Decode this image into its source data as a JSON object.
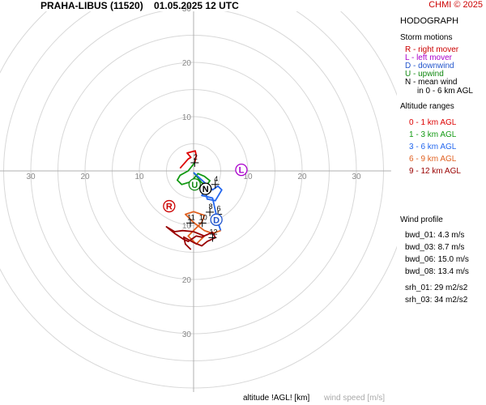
{
  "header": {
    "title": "PRAHA-LIBUS (11520)    01.05.2025 12 UTC",
    "copyright": "CHMI © 2025"
  },
  "panel": {
    "title": "HODOGRAPH",
    "storm_title": "Storm motions",
    "storm_items": [
      {
        "text": "R - right mover",
        "color": "#cc0000"
      },
      {
        "text": "L - left mover",
        "color": "#aa00cc"
      },
      {
        "text": "D - downwind",
        "color": "#2255cc"
      },
      {
        "text": "U - upwind",
        "color": "#118811"
      },
      {
        "text": "N - mean wind",
        "color": "#000000"
      },
      {
        "text": "in 0 - 6 km AGL",
        "color": "#000000"
      }
    ],
    "alt_title": "Altitude ranges",
    "alt_items": [
      {
        "text": "0 - 1 km AGL",
        "color": "#dd0000"
      },
      {
        "text": "1 - 3 km AGL",
        "color": "#119911"
      },
      {
        "text": "3 - 6 km AGL",
        "color": "#2266ee"
      },
      {
        "text": "6 - 9 km AGL",
        "color": "#e06020"
      },
      {
        "text": "9 - 12 km AGL",
        "color": "#990000"
      }
    ],
    "wind_title": "Wind profile",
    "wind_items": [
      "bwd_01: 4.3 m/s",
      "bwd_03: 8.7 m/s",
      "bwd_06: 15.0 m/s",
      "bwd_08: 13.4 m/s"
    ],
    "srh_items": [
      "srh_01: 29 m2/s2",
      "srh_03: 34 m2/s2"
    ]
  },
  "footer": {
    "altitude_label": "altitude !AGL! [km]",
    "speed_label": "wind speed [m/s]"
  },
  "chart_data": {
    "type": "hodograph",
    "units": "m/s",
    "ring_step": 5,
    "max_ring": 40,
    "axis_labels": [
      10,
      20,
      30
    ],
    "segments": [
      {
        "range": "0 - 1 km AGL",
        "color": "#dd0000",
        "points": [
          [
            -2.5,
            0.5
          ],
          [
            -1,
            2.2
          ],
          [
            -0.5,
            2.5
          ],
          [
            -1.2,
            3.3
          ],
          [
            0.3,
            3.7
          ],
          [
            0.5,
            2.8
          ],
          [
            0.2,
            1.5
          ]
        ]
      },
      {
        "range": "1 - 3 km AGL",
        "color": "#119911",
        "points": [
          [
            0.2,
            1.5
          ],
          [
            -1,
            0
          ],
          [
            -2.5,
            -0.8
          ],
          [
            -3,
            -1.7
          ],
          [
            -2.2,
            -2.5
          ],
          [
            -0.5,
            -2
          ],
          [
            0.8,
            -0.5
          ],
          [
            2,
            -1
          ],
          [
            3,
            -1.8
          ],
          [
            2.5,
            -2.5
          ],
          [
            1.5,
            -2.2
          ],
          [
            0,
            -0.3
          ]
        ]
      },
      {
        "range": "3 - 6 km AGL",
        "color": "#2266ee",
        "points": [
          [
            0,
            -0.3
          ],
          [
            3.5,
            -3.5
          ],
          [
            4.5,
            -2.8
          ],
          [
            5.2,
            -3.5
          ],
          [
            4,
            -5.5
          ],
          [
            2.5,
            -5.2
          ],
          [
            2.2,
            -3.7
          ],
          [
            1.5,
            -4.5
          ],
          [
            3.5,
            -5
          ],
          [
            4.5,
            -9.5
          ],
          [
            5,
            -11
          ]
        ]
      },
      {
        "range": "6 - 9 km AGL",
        "color": "#e06020",
        "points": [
          [
            5,
            -11
          ],
          [
            3.5,
            -11.5
          ],
          [
            2,
            -11
          ],
          [
            0,
            -9.5
          ],
          [
            -1.5,
            -8
          ],
          [
            0,
            -7.5
          ],
          [
            2,
            -8.2
          ],
          [
            1.5,
            -9.5
          ],
          [
            -1,
            -12
          ],
          [
            0.5,
            -13.5
          ],
          [
            2,
            -12
          ]
        ]
      },
      {
        "range": "9 - 12 km AGL",
        "color": "#990000",
        "points": [
          [
            2,
            -12
          ],
          [
            0,
            -11.2
          ],
          [
            -2,
            -11
          ],
          [
            -3.5,
            -11.2
          ],
          [
            -5,
            -10.3
          ],
          [
            -3.5,
            -11.5
          ],
          [
            -2,
            -12.5
          ],
          [
            -1,
            -13
          ],
          [
            0.5,
            -12
          ],
          [
            1.5,
            -12.2
          ],
          [
            3.5,
            -11.3
          ],
          [
            4,
            -12.3
          ],
          [
            2.5,
            -13
          ],
          [
            1.5,
            -13.8
          ],
          [
            0,
            -13.2
          ],
          [
            -1.8,
            -12.2
          ],
          [
            -1.5,
            -13.5
          ],
          [
            -0.5,
            -14.5
          ]
        ]
      }
    ],
    "altitude_marks": [
      {
        "text": "2",
        "u": 0.2,
        "v": 1.5
      },
      {
        "text": "4",
        "u": 4,
        "v": -2.5
      },
      {
        "text": "6",
        "u": 4.5,
        "v": -8
      },
      {
        "text": "8",
        "u": 3,
        "v": -7.6
      },
      {
        "text": "10",
        "u": 1.6,
        "v": -9.6
      },
      {
        "text": "11",
        "u": -0.6,
        "v": -9.6
      },
      {
        "text": "12",
        "u": 3.5,
        "v": -12.3
      }
    ],
    "storm_motions": [
      {
        "label": "R",
        "u": -4.5,
        "v": -6.5,
        "color": "#cc0000"
      },
      {
        "label": "L",
        "u": 8.8,
        "v": 0.2,
        "color": "#aa00cc"
      },
      {
        "label": "D",
        "u": 4.2,
        "v": -9,
        "color": "#2255cc"
      },
      {
        "label": "U",
        "u": 0.2,
        "v": -2.5,
        "color": "#118811"
      },
      {
        "label": "N",
        "u": 2.2,
        "v": -3.3,
        "color": "#000000"
      }
    ]
  }
}
